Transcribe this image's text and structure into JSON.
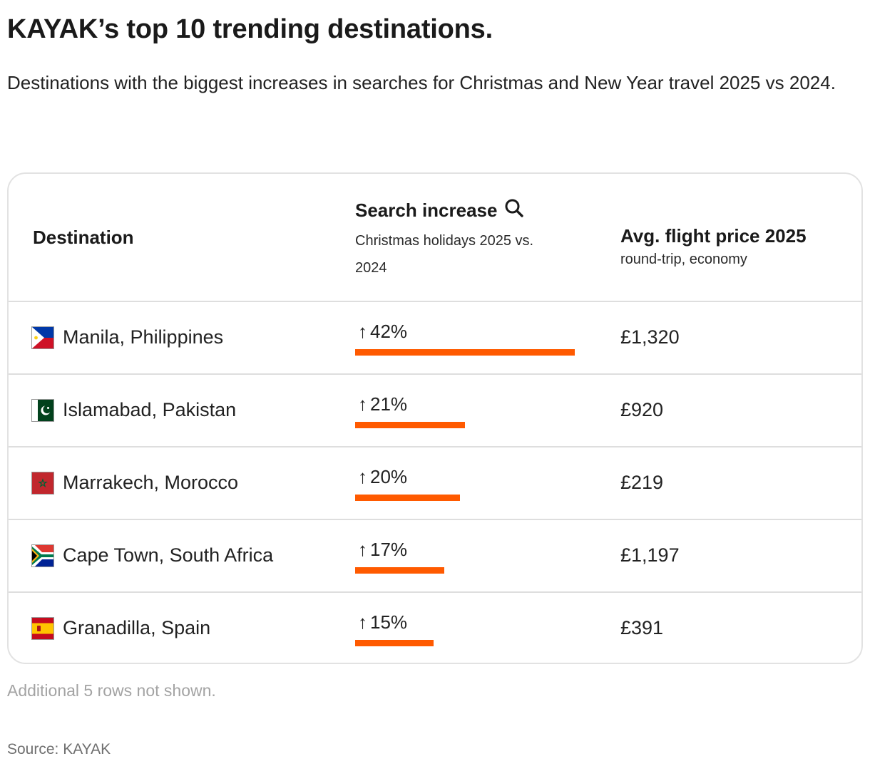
{
  "title": "KAYAK’s top 10 trending destinations.",
  "subtitle": "Destinations with the biggest increases in searches for Christmas and New Year travel 2025 vs 2024.",
  "header": {
    "destination": "Destination",
    "search_title": "Search increase",
    "search_sub": "Christmas holidays 2025 vs. 2024",
    "price_title": "Avg. flight price 2025",
    "price_sub": "round-trip, economy",
    "search_icon": "search-icon"
  },
  "colors": {
    "bar": "#ff5a00"
  },
  "chart_data": {
    "type": "table",
    "columns": [
      "Destination",
      "Search increase",
      "Avg. flight price 2025"
    ],
    "bar_max": 42,
    "rows": [
      {
        "destination": "Manila, Philippines",
        "flag": "philippines-flag-icon",
        "increase": 42,
        "increase_label": "42%",
        "price": "£1,320"
      },
      {
        "destination": "Islamabad, Pakistan",
        "flag": "pakistan-flag-icon",
        "increase": 21,
        "increase_label": "21%",
        "price": "£920"
      },
      {
        "destination": "Marrakech, Morocco",
        "flag": "morocco-flag-icon",
        "increase": 20,
        "increase_label": "20%",
        "price": "£219"
      },
      {
        "destination": "Cape Town, South Africa",
        "flag": "south-africa-flag-icon",
        "increase": 17,
        "increase_label": "17%",
        "price": "£1,197"
      },
      {
        "destination": "Granadilla, Spain",
        "flag": "spain-flag-icon",
        "increase": 15,
        "increase_label": "15%",
        "price": "£391"
      }
    ]
  },
  "footer": {
    "note": "Additional 5 rows not shown.",
    "source": "Source: KAYAK"
  }
}
